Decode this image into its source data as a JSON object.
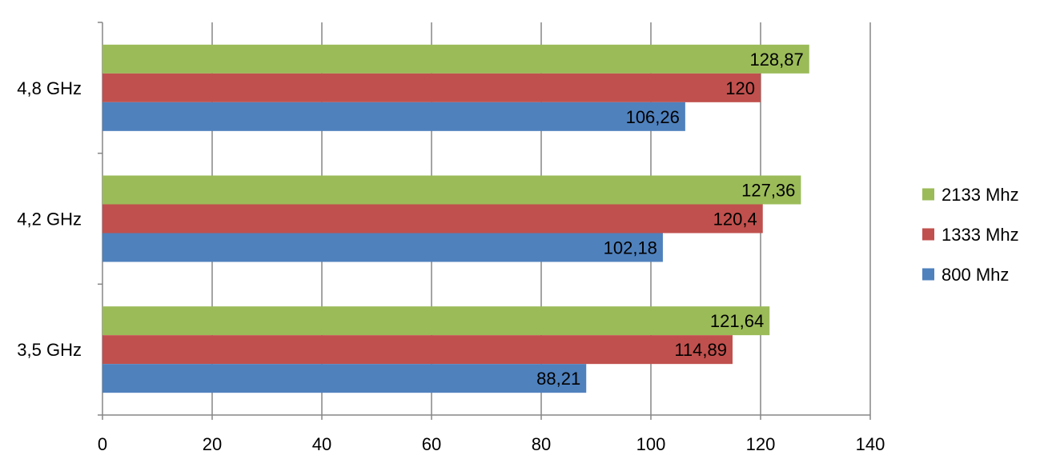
{
  "chart_data": {
    "type": "bar",
    "orientation": "horizontal",
    "categories": [
      "4,8 GHz",
      "4,2 GHz",
      "3,5 GHz"
    ],
    "series": [
      {
        "name": "2133 Mhz",
        "color": "#9BBB59",
        "values": [
          128.87,
          127.36,
          121.64
        ],
        "labels": [
          "128,87",
          "127,36",
          "121,64"
        ]
      },
      {
        "name": "1333 Mhz",
        "color": "#C0504D",
        "values": [
          120,
          120.4,
          114.89
        ],
        "labels": [
          "120",
          "120,4",
          "114,89"
        ]
      },
      {
        "name": "800 Mhz",
        "color": "#4F81BD",
        "values": [
          106.26,
          102.18,
          88.21
        ],
        "labels": [
          "106,26",
          "102,18",
          "88,21"
        ]
      }
    ],
    "x_ticks": [
      "0",
      "20",
      "40",
      "60",
      "80",
      "100",
      "120",
      "140"
    ],
    "xlim": [
      0,
      140
    ],
    "grid": "vertical",
    "legend_position": "right",
    "title": "",
    "xlabel": "",
    "ylabel": ""
  }
}
